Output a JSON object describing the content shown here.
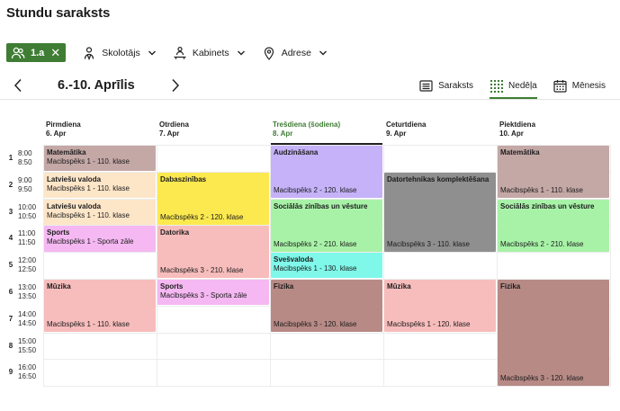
{
  "app": {
    "title": "Stundu saraksts"
  },
  "filters": {
    "chip_label": "1.a",
    "teacher_label": "Skolotājs",
    "room_label": "Kabinets",
    "address_label": "Adrese"
  },
  "week": {
    "label": "6.-10. Aprīlis"
  },
  "views": [
    {
      "label": "Saraksts",
      "icon": "list-icon"
    },
    {
      "label": "Nedēļa",
      "icon": "week-grid-icon"
    },
    {
      "label": "Mēnesis",
      "icon": "calendar-icon"
    }
  ],
  "days": [
    {
      "name": "Pirmdiena",
      "date": "6. Apr"
    },
    {
      "name": "Otrdiena",
      "date": "7. Apr"
    },
    {
      "name": "Trešdiena (šodiena)",
      "date": "8. Apr"
    },
    {
      "name": "Ceturtdiena",
      "date": "9. Apr"
    },
    {
      "name": "Piektdiena",
      "date": "10. Apr"
    }
  ],
  "periods": [
    {
      "num": "1",
      "start": "8:00",
      "end": "8:50"
    },
    {
      "num": "2",
      "start": "9:00",
      "end": "9:50"
    },
    {
      "num": "3",
      "start": "10:00",
      "end": "10:50"
    },
    {
      "num": "4",
      "start": "11:00",
      "end": "11:50"
    },
    {
      "num": "5",
      "start": "12:00",
      "end": "12:50"
    },
    {
      "num": "6",
      "start": "13:00",
      "end": "13:50"
    },
    {
      "num": "7",
      "start": "14:00",
      "end": "14:50"
    },
    {
      "num": "8",
      "start": "15:00",
      "end": "15:50"
    },
    {
      "num": "9",
      "start": "16:00",
      "end": "16:50"
    }
  ],
  "colors": {
    "accent": "#3e7d33",
    "mauve": "#c4a8a6",
    "peach": "#fde5c8",
    "pink": "#f5b8f2",
    "rose": "#f7bcbc",
    "yellow": "#fce94f",
    "lavender": "#c5b2f8",
    "green": "#a8f2a8",
    "teal": "#7ff8ea",
    "brown": "#b78a86",
    "gray": "#8f8f8f"
  },
  "lessons": [
    {
      "day": 0,
      "start": 1,
      "span": 1,
      "subject": "Matemātika",
      "room": "Macibspēks 1 - 110. klase",
      "color": "mauve",
      "split": true
    },
    {
      "day": 0,
      "start": 2,
      "span": 1,
      "subject": "Latviešu valoda",
      "room": "Macibspēks 1 - 110. klase",
      "color": "peach",
      "split": true
    },
    {
      "day": 0,
      "start": 3,
      "span": 1,
      "subject": "Latviešu valoda",
      "room": "Macibspēks 1 - 110. klase",
      "color": "peach",
      "split": true
    },
    {
      "day": 0,
      "start": 4,
      "span": 1,
      "subject": "Sports",
      "room": "Macibspēks 1 - Sporta zāle",
      "color": "pink",
      "split": true
    },
    {
      "day": 0,
      "start": 6,
      "span": 2,
      "subject": "Mūzika",
      "room": "Macibspēks 1 - 110. klase",
      "color": "rose",
      "split": false
    },
    {
      "day": 1,
      "start": 2,
      "span": 2,
      "subject": "Dabaszinības",
      "room": "Macibspēks 2 - 120. klase",
      "color": "yellow",
      "split": false
    },
    {
      "day": 1,
      "start": 4,
      "span": 2,
      "subject": "Datorika",
      "room": "Macibspēks 3 - 210. klase",
      "color": "rose",
      "split": false
    },
    {
      "day": 1,
      "start": 6,
      "span": 1,
      "subject": "Sports",
      "room": "Macibspēks 3 - Sporta zāle",
      "color": "pink",
      "split": true
    },
    {
      "day": 2,
      "start": 1,
      "span": 2,
      "subject": "Audzināšana",
      "room": "Macibspēks 2 - 120. klase",
      "color": "lavender",
      "split": false
    },
    {
      "day": 2,
      "start": 3,
      "span": 2,
      "subject": "Sociālās zinības un vēsture",
      "room": "Macibspēks 2 - 210. klase",
      "color": "green",
      "split": false
    },
    {
      "day": 2,
      "start": 5,
      "span": 1,
      "subject": "Svešvaloda",
      "room": "Macibspēks 1 - 130. klase",
      "color": "teal",
      "split": true
    },
    {
      "day": 2,
      "start": 6,
      "span": 2,
      "subject": "Fizika",
      "room": "Macibspēks 3 - 120. klase",
      "color": "brown",
      "split": false
    },
    {
      "day": 3,
      "start": 2,
      "span": 3,
      "subject": "Datortehnikas komplektēšana",
      "room": "Macibspēks 3 - 110. klase",
      "color": "gray",
      "split": false
    },
    {
      "day": 3,
      "start": 6,
      "span": 2,
      "subject": "Mūzika",
      "room": "Macibspēks 1 - 120. klase",
      "color": "rose",
      "split": false
    },
    {
      "day": 4,
      "start": 1,
      "span": 2,
      "subject": "Matemātika",
      "room": "Macibspēks 1 - 110. klase",
      "color": "mauve",
      "split": false
    },
    {
      "day": 4,
      "start": 3,
      "span": 2,
      "subject": "Sociālās zinības un vēsture",
      "room": "Macibspēks 2 - 210. klase",
      "color": "green",
      "split": false
    },
    {
      "day": 4,
      "start": 6,
      "span": 4,
      "subject": "Fizika",
      "room": "Macibspēks 3 - 120. klase",
      "color": "brown",
      "split": false
    }
  ]
}
